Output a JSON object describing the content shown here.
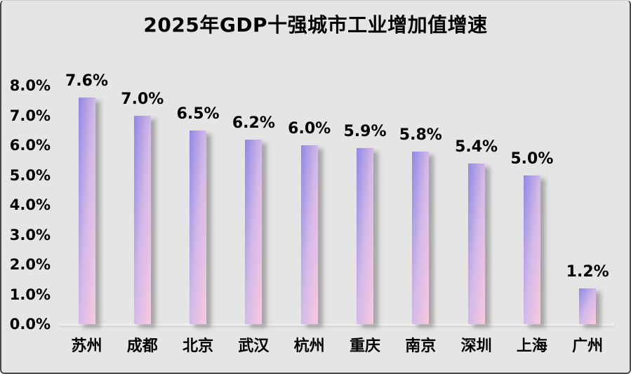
{
  "chart_data": {
    "type": "bar",
    "title": "2025年GDP十强城市工业增加值增速",
    "categories": [
      "苏州",
      "成都",
      "北京",
      "武汉",
      "杭州",
      "重庆",
      "南京",
      "深圳",
      "上海",
      "广州"
    ],
    "values": [
      7.6,
      7.0,
      6.5,
      6.2,
      6.0,
      5.9,
      5.8,
      5.4,
      5.0,
      1.2
    ],
    "data_labels": [
      "7.6%",
      "7.0%",
      "6.5%",
      "6.2%",
      "6.0%",
      "5.9%",
      "5.8%",
      "5.4%",
      "5.0%",
      "1.2%"
    ],
    "yticks": [
      "0.0%",
      "1.0%",
      "2.0%",
      "3.0%",
      "4.0%",
      "5.0%",
      "6.0%",
      "7.0%",
      "8.0%"
    ],
    "ylim": [
      0,
      8
    ],
    "xlabel": "",
    "ylabel": "",
    "grid": "off",
    "legend": "none",
    "colors": {
      "background": "#e6e5e5",
      "bar_gradient_start": "#9188e2",
      "bar_gradient_mid": "#d3b9e9",
      "bar_gradient_end": "#f8cadf",
      "text": "#000000",
      "axis_line": "#f1f0f1"
    }
  }
}
